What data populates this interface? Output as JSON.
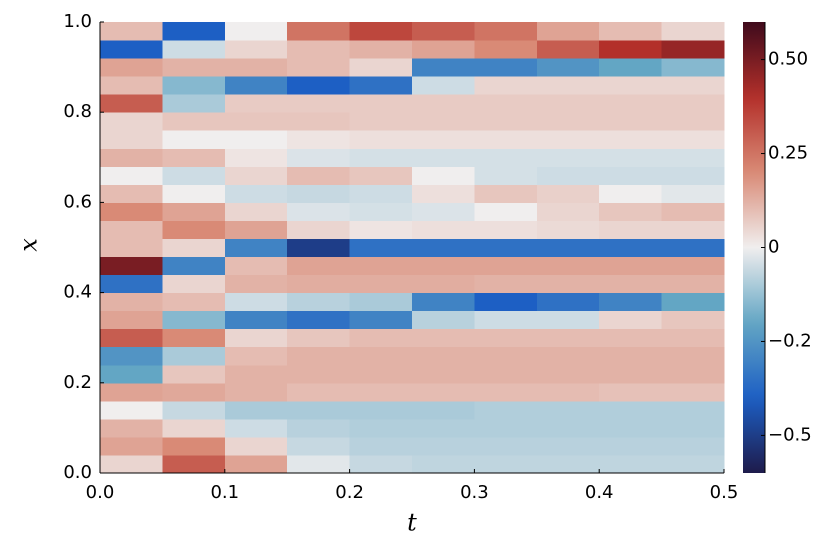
{
  "chart_data": {
    "type": "heatmap",
    "xlabel": "t",
    "ylabel": "x",
    "xlim": [
      0,
      0.5
    ],
    "ylim": [
      0,
      1
    ],
    "xticks": [
      {
        "value": 0,
        "label": "0.0"
      },
      0.1,
      0.2,
      0.3,
      0.4,
      0.5
    ],
    "yticks": [
      {
        "value": 0,
        "label": "0.0"
      },
      0.2,
      0.4,
      0.6,
      0.8,
      {
        "value": 1,
        "label": "1.0"
      }
    ],
    "x": [
      0.025,
      0.075,
      0.125,
      0.175,
      0.225,
      0.275,
      0.325,
      0.375,
      0.425,
      0.475
    ],
    "y": [
      0.02,
      0.06,
      0.1,
      0.14,
      0.18,
      0.22,
      0.26,
      0.3,
      0.34,
      0.38,
      0.42,
      0.46,
      0.5,
      0.54,
      0.58,
      0.62,
      0.66,
      0.7,
      0.74,
      0.78,
      0.82,
      0.86,
      0.9,
      0.94,
      0.98
    ],
    "z": [
      [
        0.05,
        0.3,
        0.15,
        -0.02,
        -0.06,
        -0.07,
        -0.07,
        -0.07,
        -0.07,
        -0.07
      ],
      [
        0.15,
        0.2,
        0.05,
        -0.06,
        -0.08,
        -0.08,
        -0.08,
        -0.08,
        -0.08,
        -0.08
      ],
      [
        0.12,
        0.05,
        -0.05,
        -0.08,
        -0.09,
        -0.09,
        -0.09,
        -0.09,
        -0.09,
        -0.09
      ],
      [
        0.0,
        -0.06,
        -0.1,
        -0.1,
        -0.1,
        -0.1,
        -0.09,
        -0.09,
        -0.09,
        -0.09
      ],
      [
        0.15,
        0.14,
        0.12,
        0.1,
        0.1,
        0.1,
        0.1,
        0.1,
        0.09,
        0.09
      ],
      [
        -0.2,
        0.08,
        0.12,
        0.12,
        0.12,
        0.12,
        0.12,
        0.12,
        0.12,
        0.12
      ],
      [
        -0.25,
        -0.1,
        0.1,
        0.12,
        0.12,
        0.12,
        0.12,
        0.12,
        0.12,
        0.12
      ],
      [
        0.3,
        0.2,
        0.05,
        0.08,
        0.1,
        0.1,
        0.1,
        0.1,
        0.1,
        0.1
      ],
      [
        0.15,
        -0.15,
        -0.3,
        -0.35,
        -0.3,
        -0.08,
        -0.05,
        -0.05,
        0.05,
        0.08
      ],
      [
        0.12,
        0.1,
        -0.05,
        -0.08,
        -0.1,
        -0.3,
        -0.4,
        -0.35,
        -0.3,
        -0.2
      ],
      [
        -0.35,
        0.05,
        0.12,
        0.13,
        0.13,
        0.13,
        0.12,
        0.12,
        0.12,
        0.12
      ],
      [
        0.5,
        -0.3,
        0.1,
        0.15,
        0.15,
        0.15,
        0.15,
        0.15,
        0.15,
        0.15
      ],
      [
        0.1,
        0.05,
        -0.3,
        -0.5,
        -0.35,
        -0.35,
        -0.35,
        -0.35,
        -0.35,
        -0.35
      ],
      [
        0.1,
        0.2,
        0.15,
        0.05,
        0.02,
        0.03,
        0.03,
        0.04,
        0.05,
        0.05
      ],
      [
        0.2,
        0.15,
        0.05,
        -0.03,
        -0.04,
        -0.03,
        0.0,
        0.05,
        0.08,
        0.1
      ],
      [
        0.1,
        0.0,
        -0.05,
        -0.06,
        -0.05,
        0.03,
        0.08,
        0.06,
        0.0,
        -0.02
      ],
      [
        0.0,
        -0.05,
        0.05,
        0.1,
        0.08,
        0.0,
        -0.04,
        -0.05,
        -0.05,
        -0.05
      ],
      [
        0.12,
        0.1,
        0.02,
        -0.03,
        -0.04,
        -0.04,
        -0.04,
        -0.04,
        -0.04,
        -0.04
      ],
      [
        0.05,
        0.0,
        0.0,
        0.02,
        0.03,
        0.03,
        0.03,
        0.03,
        0.03,
        0.03
      ],
      [
        0.05,
        0.08,
        0.08,
        0.08,
        0.07,
        0.07,
        0.07,
        0.07,
        0.07,
        0.07
      ],
      [
        0.3,
        -0.1,
        0.07,
        0.07,
        0.07,
        0.07,
        0.07,
        0.07,
        0.07,
        0.07
      ],
      [
        0.1,
        -0.15,
        -0.3,
        -0.4,
        -0.35,
        -0.05,
        0.05,
        0.05,
        0.05,
        0.05
      ],
      [
        0.15,
        0.12,
        0.12,
        0.1,
        0.05,
        -0.3,
        -0.3,
        -0.25,
        -0.2,
        -0.15
      ],
      [
        -0.4,
        -0.05,
        0.05,
        0.1,
        0.12,
        0.15,
        0.2,
        0.3,
        0.4,
        0.45
      ],
      [
        0.1,
        -0.4,
        0.0,
        0.25,
        0.35,
        0.3,
        0.25,
        0.15,
        0.1,
        0.05
      ]
    ],
    "clim": [
      -0.6,
      0.6
    ],
    "colormap": [
      "#1e1b4b",
      "#1d5fc4",
      "#63a6c4",
      "#f0eeee",
      "#d98a76",
      "#b3302a",
      "#3f0a1c"
    ],
    "cticks": [
      {
        "value": 0.5,
        "label": "0.50"
      },
      0.25,
      0,
      {
        "value": -0.25,
        "label": "−0.2"
      },
      {
        "value": -0.5,
        "label": "−0.5"
      }
    ]
  }
}
